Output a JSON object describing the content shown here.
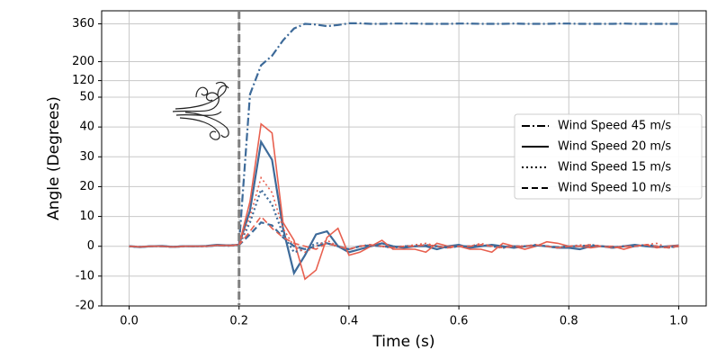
{
  "chart_data": {
    "type": "line",
    "x_label": "Time (s)",
    "y_label": "Angle (Degrees)",
    "x": [
      0,
      0.02,
      0.04,
      0.06,
      0.08,
      0.1,
      0.12,
      0.14,
      0.16,
      0.18,
      0.2,
      0.22,
      0.24,
      0.26,
      0.28,
      0.3,
      0.32,
      0.34,
      0.36,
      0.38,
      0.4,
      0.42,
      0.44,
      0.46,
      0.48,
      0.5,
      0.52,
      0.54,
      0.56,
      0.58,
      0.6,
      0.62,
      0.64,
      0.66,
      0.68,
      0.7,
      0.72,
      0.74,
      0.76,
      0.78,
      0.8,
      0.82,
      0.84,
      0.86,
      0.88,
      0.9,
      0.92,
      0.94,
      0.96,
      0.98,
      1
    ],
    "xlim": [
      -0.05,
      1.05
    ],
    "xticks": [
      {
        "value": 0,
        "label": "0.0"
      },
      0.2,
      0.4,
      0.6,
      0.8,
      {
        "value": 1,
        "label": "1.0"
      }
    ],
    "ylim": [
      -20,
      415
    ],
    "ybreak": 50,
    "yticks": [
      -20,
      -10,
      0,
      10,
      20,
      30,
      40,
      50,
      120,
      200,
      360
    ],
    "grid": true,
    "legend": "right",
    "vline": 0.2,
    "series": [
      {
        "name": "Wind Speed 45 m/s",
        "dash": "dashdot",
        "lines": [
          {
            "color": "#3d6a99",
            "values": [
              0,
              -0.2,
              0,
              0,
              -0.2,
              0,
              0,
              0,
              0.3,
              0.3,
              0.5,
              62,
              185,
              225,
              290,
              340,
              360,
              357,
              350,
              355,
              362,
              362,
              360,
              360,
              361,
              361,
              361,
              360,
              360,
              360,
              361,
              361,
              360,
              360,
              360,
              361,
              360,
              360,
              360,
              361,
              361,
              360,
              360,
              360,
              360,
              361,
              360,
              360,
              360,
              360,
              360
            ]
          }
        ]
      },
      {
        "name": "Wind Speed 20 m/s",
        "dash": "solid",
        "lines": [
          {
            "color": "#3d6a99",
            "values": [
              0,
              -0.3,
              0,
              0.1,
              -0.2,
              0,
              0,
              0.1,
              0.5,
              0.3,
              0.5,
              12,
              35,
              29,
              6,
              -9,
              -3,
              4,
              5,
              0,
              -2,
              -1,
              0,
              1,
              0,
              -0.5,
              0,
              0,
              -1,
              0,
              0.5,
              -0.5,
              0,
              0.5,
              0,
              -0.5,
              0,
              0.3,
              0,
              -0.5,
              -0.5,
              -1,
              0,
              0,
              -0.5,
              0,
              0.5,
              0,
              -0.3,
              0,
              0.3
            ]
          },
          {
            "color": "#e8604f",
            "values": [
              0,
              -0.2,
              0,
              0,
              -0.3,
              0,
              0,
              0,
              0.4,
              0.3,
              0.5,
              15,
              41,
              38,
              8,
              2,
              -11,
              -8,
              3,
              6,
              -3,
              -2,
              0,
              2,
              -1,
              -1,
              -1,
              -2,
              1,
              0,
              0,
              -1,
              -1,
              -2,
              1,
              0,
              -1,
              0,
              1.5,
              1,
              0,
              0,
              -0.5,
              0,
              0,
              -1,
              0,
              0.5,
              -0.5,
              0,
              0.3
            ]
          }
        ]
      },
      {
        "name": "Wind Speed 15 m/s",
        "dash": "dotted",
        "lines": [
          {
            "color": "#3d6a99",
            "values": [
              0,
              -0.2,
              0,
              0,
              -0.2,
              0,
              0,
              0,
              0.3,
              0.2,
              0.4,
              8,
              19,
              14,
              4,
              -2,
              -1,
              1,
              1,
              0,
              -1,
              0,
              0.5,
              0,
              -0.5,
              0,
              0,
              0.5,
              0,
              -0.5,
              0,
              0,
              0.5,
              0,
              -0.5,
              0,
              0,
              0.5,
              0,
              -0.5,
              0,
              0,
              0.5,
              0,
              -0.5,
              0,
              0,
              0.5,
              0,
              -0.5,
              0
            ]
          },
          {
            "color": "#e8604f",
            "values": [
              0,
              -0.2,
              0,
              0,
              -0.2,
              0,
              0,
              0,
              0.3,
              0.2,
              0.4,
              10,
              23,
              18,
              6,
              0,
              -2,
              0,
              2,
              0,
              -1,
              0,
              0.5,
              0,
              -0.5,
              0,
              0.5,
              1,
              0,
              -0.5,
              0,
              0,
              1,
              0,
              -0.5,
              0,
              0,
              0.5,
              0,
              -0.5,
              0,
              0.5,
              0,
              0,
              -0.5,
              0,
              0,
              0.5,
              1,
              -0.5,
              0
            ]
          }
        ]
      },
      {
        "name": "Wind Speed 10 m/s",
        "dash": "dashed",
        "lines": [
          {
            "color": "#3d6a99",
            "values": [
              0,
              -0.2,
              0,
              0,
              -0.2,
              0,
              0,
              0,
              0.3,
              0.2,
              0.4,
              4,
              8,
              7,
              3,
              0,
              -1,
              0,
              1,
              0,
              -1,
              0,
              0.3,
              0,
              -0.3,
              0,
              0,
              0.3,
              0,
              -0.3,
              0,
              0,
              0.3,
              0,
              -0.3,
              0,
              0,
              0.3,
              0,
              -0.3,
              0,
              0,
              0.3,
              0,
              -0.3,
              0,
              0,
              0.3,
              0,
              -0.3,
              0
            ]
          },
          {
            "color": "#e8604f",
            "values": [
              0,
              -0.2,
              0,
              0,
              -0.2,
              0,
              0,
              0,
              0.3,
              0.2,
              0.4,
              5,
              10,
              6,
              3,
              1,
              0,
              -1,
              1,
              0,
              -1,
              0,
              0.5,
              0,
              -0.5,
              0,
              0,
              0.5,
              0,
              -0.5,
              0,
              0,
              0.5,
              0,
              -0.5,
              0,
              0,
              0.5,
              0,
              -0.5,
              0,
              0,
              0.5,
              0,
              -0.5,
              0,
              0,
              0.5,
              0,
              -0.5,
              0
            ]
          }
        ]
      }
    ]
  }
}
